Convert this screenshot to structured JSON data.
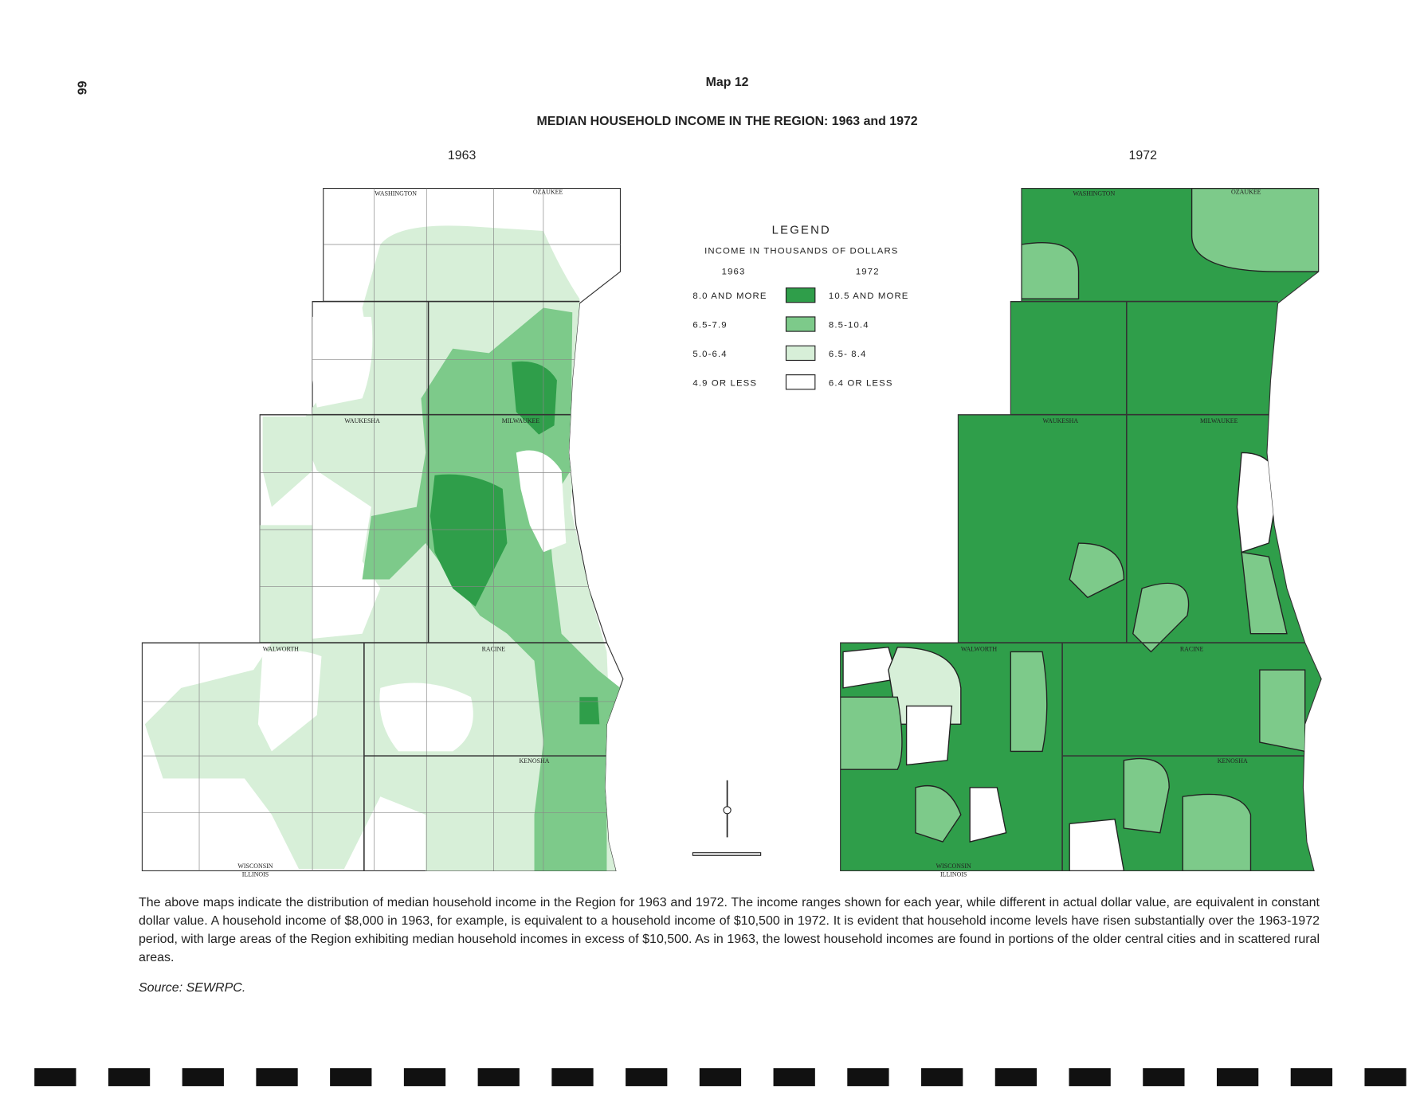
{
  "page_number": "66",
  "header": {
    "map_label": "Map 12",
    "title": "MEDIAN HOUSEHOLD INCOME IN THE REGION: 1963 and 1972"
  },
  "panels": [
    {
      "year": "1963"
    },
    {
      "year": "1972"
    }
  ],
  "legend": {
    "title": "LEGEND",
    "subtitle": "INCOME IN THOUSANDS OF DOLLARS",
    "columns": [
      "1963",
      "1972"
    ],
    "items": [
      {
        "range_1963": "8.0 AND MORE",
        "range_1972": "10.5 AND MORE",
        "color": "#2f9e4a"
      },
      {
        "range_1963": "6.5-7.9",
        "range_1972": "8.5-10.4",
        "color": "#7dca8a"
      },
      {
        "range_1963": "5.0-6.4",
        "range_1972": "6.5- 8.4",
        "color": "#d7efd8"
      },
      {
        "range_1963": "4.9 OR LESS",
        "range_1972": "6.4 OR LESS",
        "color": "#ffffff"
      }
    ]
  },
  "map_labels": [
    "WASHINGTON",
    "OZAUKEE",
    "WAUKESHA",
    "MILWAUKEE",
    "WALWORTH",
    "RACINE",
    "KENOSHA",
    "WISCONSIN",
    "ILLINOIS"
  ],
  "caption": "The above maps indicate the distribution of median household income in the Region for 1963 and 1972. The income ranges shown for each year, while different in actual dollar value, are equivalent in constant dollar value. A household income of $8,000 in 1963, for example, is equivalent to a household income of $10,500 in 1972. It is evident that household income levels have risen substantially over the 1963-1972 period, with large areas of the Region exhibiting median household incomes in excess of $10,500. As in 1963, the lowest household incomes are found in portions of the older central cities and in scattered rural areas.",
  "source": "Source: SEWRPC."
}
